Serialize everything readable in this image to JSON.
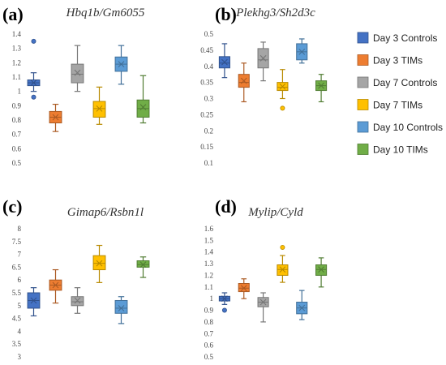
{
  "legend": {
    "items": [
      {
        "label": "Day 3 Controls",
        "color": "#4472C4"
      },
      {
        "label": "Day 3 TIMs",
        "color": "#ED7D31"
      },
      {
        "label": "Day 7 Controls",
        "color": "#A5A5A5"
      },
      {
        "label": "Day 7 TIMs",
        "color": "#FFC000"
      },
      {
        "label": "Day 10 Controls",
        "color": "#5B9BD5"
      },
      {
        "label": "Day 10 TIMs",
        "color": "#70AD47"
      }
    ]
  },
  "chart_data": [
    {
      "type": "box",
      "panel_label": "(a)",
      "title": "Hbq1b/Gm6055",
      "ylim": [
        0.5,
        1.4
      ],
      "yticks": [
        0.5,
        0.6,
        0.7,
        0.8,
        0.9,
        1,
        1.1,
        1.2,
        1.3,
        1.4
      ],
      "boxes": [
        {
          "series": "Day 3 Controls",
          "min": 1.0,
          "q1": 1.04,
          "median": 1.06,
          "q3": 1.08,
          "max": 1.13,
          "mean": 1.06,
          "outliers": [
            1.35,
            0.96
          ]
        },
        {
          "series": "Day 3 TIMs",
          "min": 0.72,
          "q1": 0.78,
          "median": 0.82,
          "q3": 0.86,
          "max": 0.91,
          "mean": 0.82,
          "outliers": []
        },
        {
          "series": "Day 7 Controls",
          "min": 1.0,
          "q1": 1.06,
          "median": 1.12,
          "q3": 1.19,
          "max": 1.32,
          "mean": 1.13,
          "outliers": []
        },
        {
          "series": "Day 7 TIMs",
          "min": 0.77,
          "q1": 0.82,
          "median": 0.88,
          "q3": 0.93,
          "max": 1.03,
          "mean": 0.88,
          "outliers": []
        },
        {
          "series": "Day 10 Controls",
          "min": 1.05,
          "q1": 1.14,
          "median": 1.19,
          "q3": 1.24,
          "max": 1.32,
          "mean": 1.19,
          "outliers": []
        },
        {
          "series": "Day 10 TIMs",
          "min": 0.78,
          "q1": 0.82,
          "median": 0.88,
          "q3": 0.94,
          "max": 1.11,
          "mean": 0.89,
          "outliers": []
        }
      ]
    },
    {
      "type": "box",
      "panel_label": "(b)",
      "title": "Plekhg3/Sh2d3c",
      "ylim": [
        0.1,
        0.5
      ],
      "yticks": [
        0.1,
        0.15,
        0.2,
        0.25,
        0.3,
        0.35,
        0.4,
        0.45,
        0.5
      ],
      "boxes": [
        {
          "series": "Day 3 Controls",
          "min": 0.365,
          "q1": 0.395,
          "median": 0.41,
          "q3": 0.43,
          "max": 0.47,
          "mean": 0.413,
          "outliers": []
        },
        {
          "series": "Day 3 TIMs",
          "min": 0.29,
          "q1": 0.335,
          "median": 0.35,
          "q3": 0.375,
          "max": 0.41,
          "mean": 0.355,
          "outliers": []
        },
        {
          "series": "Day 7 Controls",
          "min": 0.355,
          "q1": 0.395,
          "median": 0.42,
          "q3": 0.455,
          "max": 0.475,
          "mean": 0.425,
          "outliers": []
        },
        {
          "series": "Day 7 TIMs",
          "min": 0.3,
          "q1": 0.325,
          "median": 0.335,
          "q3": 0.35,
          "max": 0.39,
          "mean": 0.337,
          "outliers": [
            0.27
          ]
        },
        {
          "series": "Day 10 Controls",
          "min": 0.41,
          "q1": 0.42,
          "median": 0.445,
          "q3": 0.47,
          "max": 0.485,
          "mean": 0.445,
          "outliers": []
        },
        {
          "series": "Day 10 TIMs",
          "min": 0.29,
          "q1": 0.325,
          "median": 0.34,
          "q3": 0.355,
          "max": 0.375,
          "mean": 0.34,
          "outliers": []
        }
      ]
    },
    {
      "type": "box",
      "panel_label": "(c)",
      "title": "Gimap6/Rsbn1l",
      "ylim": [
        3,
        8
      ],
      "yticks": [
        3,
        3.5,
        4,
        4.5,
        5,
        5.5,
        6,
        6.5,
        7,
        7.5,
        8
      ],
      "boxes": [
        {
          "series": "Day 3 Controls",
          "min": 4.6,
          "q1": 4.9,
          "median": 5.2,
          "q3": 5.5,
          "max": 5.7,
          "mean": 5.2,
          "outliers": []
        },
        {
          "series": "Day 3 TIMs",
          "min": 5.1,
          "q1": 5.6,
          "median": 5.8,
          "q3": 6.0,
          "max": 6.4,
          "mean": 5.8,
          "outliers": []
        },
        {
          "series": "Day 7 Controls",
          "min": 4.7,
          "q1": 5.0,
          "median": 5.15,
          "q3": 5.35,
          "max": 5.7,
          "mean": 5.2,
          "outliers": []
        },
        {
          "series": "Day 7 TIMs",
          "min": 5.9,
          "q1": 6.4,
          "median": 6.65,
          "q3": 6.95,
          "max": 7.35,
          "mean": 6.65,
          "outliers": []
        },
        {
          "series": "Day 10 Controls",
          "min": 4.3,
          "q1": 4.7,
          "median": 4.9,
          "q3": 5.2,
          "max": 5.35,
          "mean": 4.9,
          "outliers": []
        },
        {
          "series": "Day 10 TIMs",
          "min": 6.1,
          "q1": 6.5,
          "median": 6.6,
          "q3": 6.75,
          "max": 6.9,
          "mean": 6.6,
          "outliers": []
        }
      ]
    },
    {
      "type": "box",
      "panel_label": "(d)",
      "title": "Mylip/Cyld",
      "ylim": [
        0.5,
        1.6
      ],
      "yticks": [
        0.5,
        0.6,
        0.7,
        0.8,
        0.9,
        1,
        1.1,
        1.2,
        1.3,
        1.4,
        1.5,
        1.6
      ],
      "boxes": [
        {
          "series": "Day 3 Controls",
          "min": 0.95,
          "q1": 0.98,
          "median": 1.0,
          "q3": 1.02,
          "max": 1.05,
          "mean": 1.0,
          "outliers": [
            0.9
          ]
        },
        {
          "series": "Day 3 TIMs",
          "min": 1.0,
          "q1": 1.06,
          "median": 1.09,
          "q3": 1.13,
          "max": 1.17,
          "mean": 1.09,
          "outliers": []
        },
        {
          "series": "Day 7 Controls",
          "min": 0.8,
          "q1": 0.93,
          "median": 0.97,
          "q3": 1.01,
          "max": 1.05,
          "mean": 0.97,
          "outliers": []
        },
        {
          "series": "Day 7 TIMs",
          "min": 1.14,
          "q1": 1.2,
          "median": 1.25,
          "q3": 1.29,
          "max": 1.37,
          "mean": 1.25,
          "outliers": [
            1.44
          ]
        },
        {
          "series": "Day 10 Controls",
          "min": 0.82,
          "q1": 0.87,
          "median": 0.92,
          "q3": 0.97,
          "max": 1.07,
          "mean": 0.92,
          "outliers": []
        },
        {
          "series": "Day 10 TIMs",
          "min": 1.1,
          "q1": 1.2,
          "median": 1.25,
          "q3": 1.29,
          "max": 1.35,
          "mean": 1.25,
          "outliers": []
        }
      ]
    }
  ]
}
